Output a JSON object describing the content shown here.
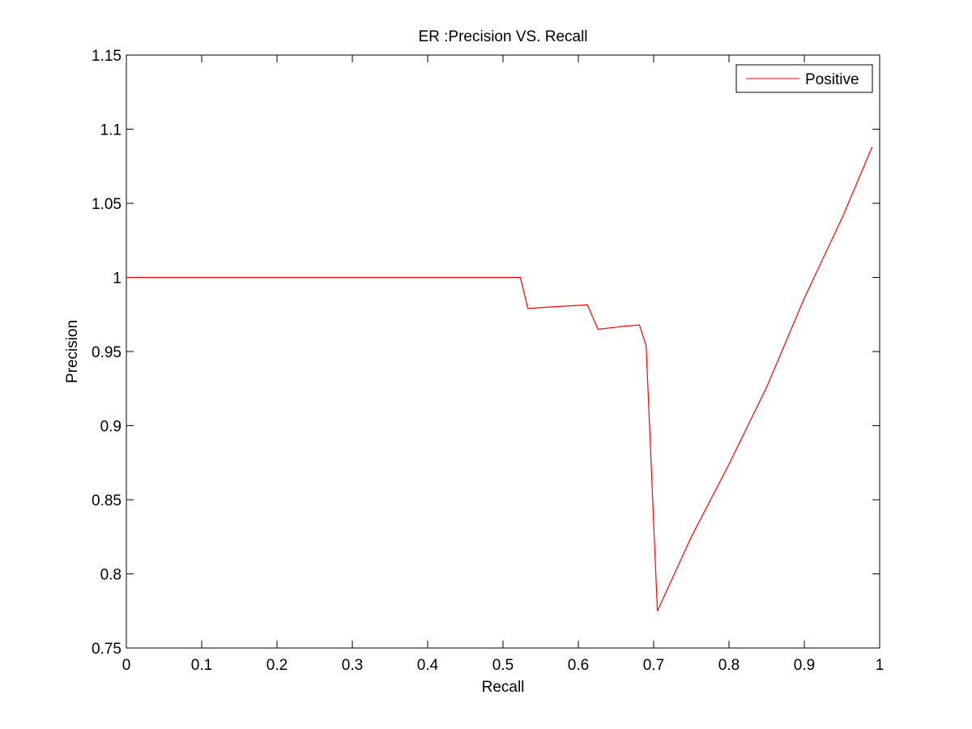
{
  "chart_data": {
    "type": "line",
    "title": "ER :Precision VS. Recall",
    "xlabel": "Recall",
    "ylabel": "Precision",
    "xlim": [
      0,
      1
    ],
    "ylim": [
      0.75,
      1.15
    ],
    "xticks": [
      0,
      0.1,
      0.2,
      0.3,
      0.4,
      0.5,
      0.6,
      0.7,
      0.8,
      0.9,
      1
    ],
    "yticks": [
      0.75,
      0.8,
      0.85,
      0.9,
      0.95,
      1,
      1.05,
      1.1,
      1.15
    ],
    "xtick_labels": [
      "0",
      "0.1",
      "0.2",
      "0.3",
      "0.4",
      "0.5",
      "0.6",
      "0.7",
      "0.8",
      "0.9",
      "1"
    ],
    "ytick_labels": [
      "0.75",
      "0.8",
      "0.85",
      "0.9",
      "0.95",
      "1",
      "1.05",
      "1.1",
      "1.15"
    ],
    "grid": false,
    "legend": {
      "position": "top-right",
      "entries": [
        "Positive"
      ]
    },
    "series": [
      {
        "name": "Positive",
        "color": "#ff0000",
        "x": [
          0,
          0.1,
          0.2,
          0.3,
          0.4,
          0.5,
          0.523,
          0.533,
          0.56,
          0.612,
          0.626,
          0.66,
          0.681,
          0.69,
          0.705,
          0.75,
          0.8,
          0.85,
          0.9,
          0.95,
          0.99
        ],
        "y": [
          1.0,
          1.0,
          1.0,
          1.0,
          1.0,
          1.0,
          1.0,
          0.979,
          0.98,
          0.9815,
          0.965,
          0.967,
          0.968,
          0.954,
          0.775,
          0.825,
          0.874,
          0.926,
          0.986,
          1.04,
          1.088
        ]
      }
    ]
  }
}
